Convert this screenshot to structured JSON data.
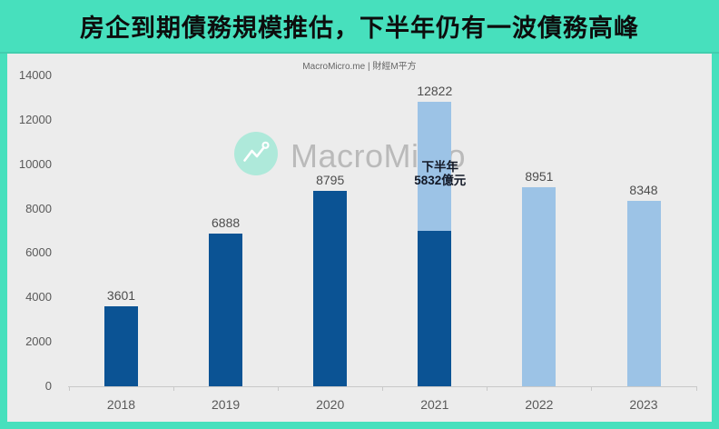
{
  "frame": {
    "title": "房企到期債務規模推估，下半年仍有一波債務高峰",
    "subtitle": "MacroMicro.me | 財經M平方",
    "watermark_text": "MacroMicro"
  },
  "colors": {
    "frame_teal": "#47e0bd",
    "panel_bg": "#ececec",
    "bar_dark": "#0b5394",
    "bar_light": "#9cc3e6",
    "title_text": "#0d0d0d",
    "label_gray": "#595959",
    "axis_line": "#c9c9c9",
    "watermark_circle": "#aee9da",
    "watermark_text": "#bababa",
    "annotation_text": "#121826"
  },
  "chart_data": {
    "type": "bar",
    "title": "房企到期債務規模推估，下半年仍有一波債務高峰",
    "source_line": "MacroMicro.me | 財經M平方",
    "categories": [
      "2018",
      "2019",
      "2020",
      "2021",
      "2022",
      "2023"
    ],
    "totals": [
      3601,
      6888,
      8795,
      12822,
      8951,
      8348
    ],
    "ylim": [
      0,
      14000
    ],
    "yticks": [
      0,
      2000,
      4000,
      6000,
      8000,
      10000,
      12000,
      14000
    ],
    "grid": false,
    "legend": "none",
    "bars": [
      {
        "category": "2018",
        "total": 3601,
        "segments": [
          {
            "value": 3601,
            "tone": "dark"
          }
        ]
      },
      {
        "category": "2019",
        "total": 6888,
        "segments": [
          {
            "value": 6888,
            "tone": "dark"
          }
        ]
      },
      {
        "category": "2020",
        "total": 8795,
        "segments": [
          {
            "value": 8795,
            "tone": "dark"
          }
        ]
      },
      {
        "category": "2021",
        "total": 12822,
        "segments": [
          {
            "value": 6990,
            "tone": "dark"
          },
          {
            "value": 5832,
            "tone": "light"
          }
        ],
        "annotation_lines": [
          "下半年",
          "5832億元"
        ]
      },
      {
        "category": "2022",
        "total": 8951,
        "segments": [
          {
            "value": 8951,
            "tone": "light"
          }
        ]
      },
      {
        "category": "2023",
        "total": 8348,
        "segments": [
          {
            "value": 8348,
            "tone": "light"
          }
        ]
      }
    ]
  }
}
